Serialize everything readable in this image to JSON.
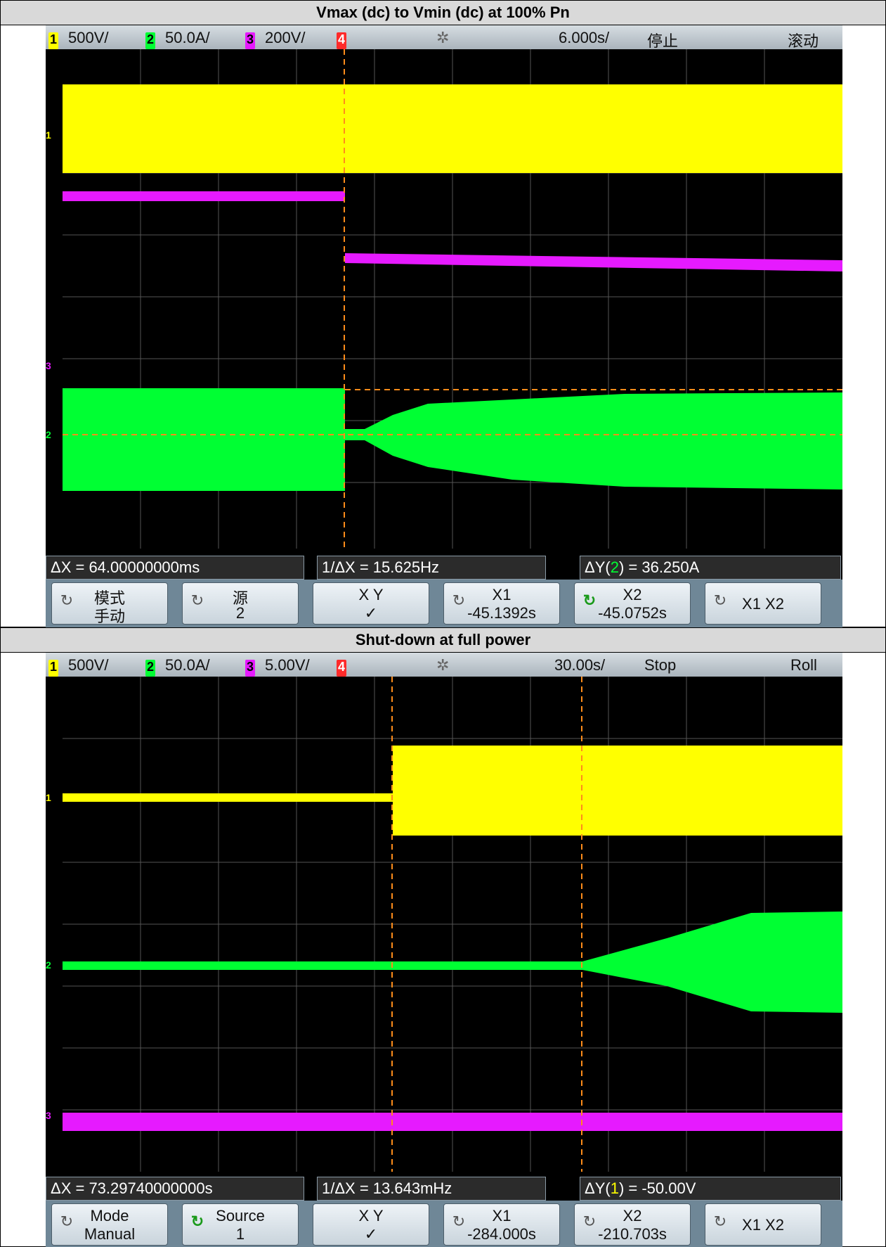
{
  "panels": [
    {
      "title": "Vmax (dc) to Vmin (dc) at 100% Pn",
      "status": {
        "ch1_num": "1",
        "ch1_scale": "500V/",
        "ch2_num": "2",
        "ch2_scale": "50.0A/",
        "ch3_num": "3",
        "ch3_scale": "200V/",
        "ch4_num": "4",
        "acq_icon": "✲",
        "timebase": "6.000s/",
        "run_state": "停止",
        "mode": "滚动"
      },
      "markers": {
        "ch1": "1",
        "ch2": "2",
        "ch3": "3"
      },
      "readouts": {
        "dx": "ΔX = 64.00000000ms",
        "inv_dx": "1/ΔX = 15.625Hz",
        "dy_prefix": "ΔY(",
        "dy_ch": "2",
        "dy_suffix": ") = 36.250A"
      },
      "softkeys": [
        {
          "line1": "模式",
          "line2": "手动"
        },
        {
          "line1": "源",
          "line2": "2"
        },
        {
          "line1": "X        Y",
          "line2": "✓"
        },
        {
          "line1": "X1",
          "line2": "-45.1392s"
        },
        {
          "line1": "X2",
          "line2": "-45.0752s"
        },
        {
          "line1": "X1 X2",
          "line2": ""
        }
      ]
    },
    {
      "title": "Shut-down at full power",
      "status": {
        "ch1_num": "1",
        "ch1_scale": "500V/",
        "ch2_num": "2",
        "ch2_scale": "50.0A/",
        "ch3_num": "3",
        "ch3_scale": "5.00V/",
        "ch4_num": "4",
        "acq_icon": "✲",
        "timebase": "30.00s/",
        "run_state": "Stop",
        "mode": "Roll"
      },
      "markers": {
        "ch1": "1",
        "ch2": "2",
        "ch3": "3"
      },
      "readouts": {
        "dx": "ΔX = 73.29740000000s",
        "inv_dx": "1/ΔX = 13.643mHz",
        "dy_prefix": "ΔY(",
        "dy_ch": "1",
        "dy_suffix": ") = -50.00V"
      },
      "softkeys": [
        {
          "line1": "Mode",
          "line2": "Manual"
        },
        {
          "line1": "Source",
          "line2": "1"
        },
        {
          "line1": "X        Y",
          "line2": "✓"
        },
        {
          "line1": "X1",
          "line2": "-284.000s"
        },
        {
          "line1": "X2",
          "line2": "-210.703s"
        },
        {
          "line1": "X1 X2",
          "line2": ""
        }
      ]
    }
  ],
  "colors": {
    "ch1": "#ffff00",
    "ch2": "#00ff33",
    "ch3": "#e61aff",
    "ch4": "#ff2a2a",
    "cursor": "#ff8c1a"
  },
  "icons": {
    "softkey_knob": "rotate-arrow-icon",
    "acquisition": "acquire-sunburst-icon"
  }
}
